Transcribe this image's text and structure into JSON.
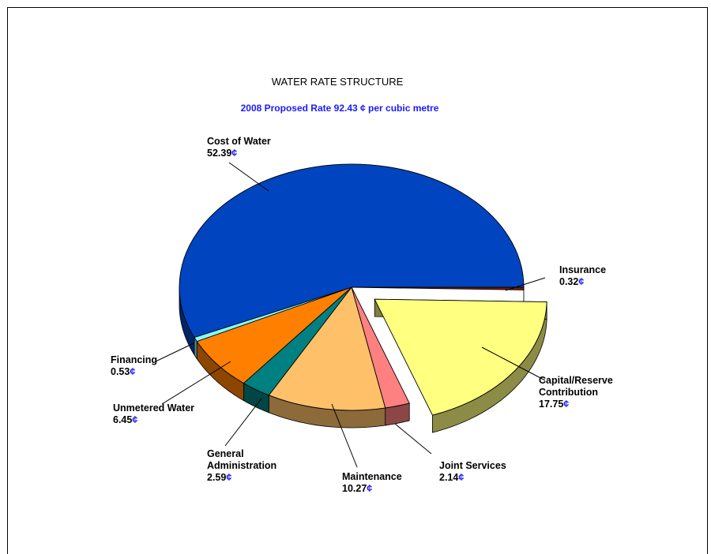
{
  "chart_data": {
    "type": "pie",
    "title": "WATER RATE STRUCTURE",
    "subtitle": "2008 Proposed Rate 92.43 ¢ per cubic metre",
    "unit": "¢",
    "slices": [
      {
        "name": "Insurance",
        "value": 0.32,
        "value_label": "0.32",
        "color": "#7a1900",
        "exploded": false
      },
      {
        "name": "Capital/Reserve Contribution",
        "value": 17.75,
        "value_label": "17.75",
        "color": "#ffff80",
        "exploded": true
      },
      {
        "name": "Joint Services",
        "value": 2.14,
        "value_label": "2.14",
        "color": "#ff8080",
        "exploded": false
      },
      {
        "name": "Maintenance",
        "value": 10.27,
        "value_label": "10.27",
        "color": "#ffc06a",
        "exploded": false
      },
      {
        "name": "General Administration",
        "value": 2.59,
        "value_label": "2.59",
        "color": "#008080",
        "exploded": false
      },
      {
        "name": "Unmetered Water",
        "value": 6.45,
        "value_label": "6.45",
        "color": "#ff8000",
        "exploded": false
      },
      {
        "name": "Financing",
        "value": 0.53,
        "value_label": "0.53",
        "color": "#80ffff",
        "exploded": false
      },
      {
        "name": "Cost of Water",
        "value": 52.39,
        "value_label": "52.39",
        "color": "#0044c0",
        "exploded": false
      }
    ]
  }
}
